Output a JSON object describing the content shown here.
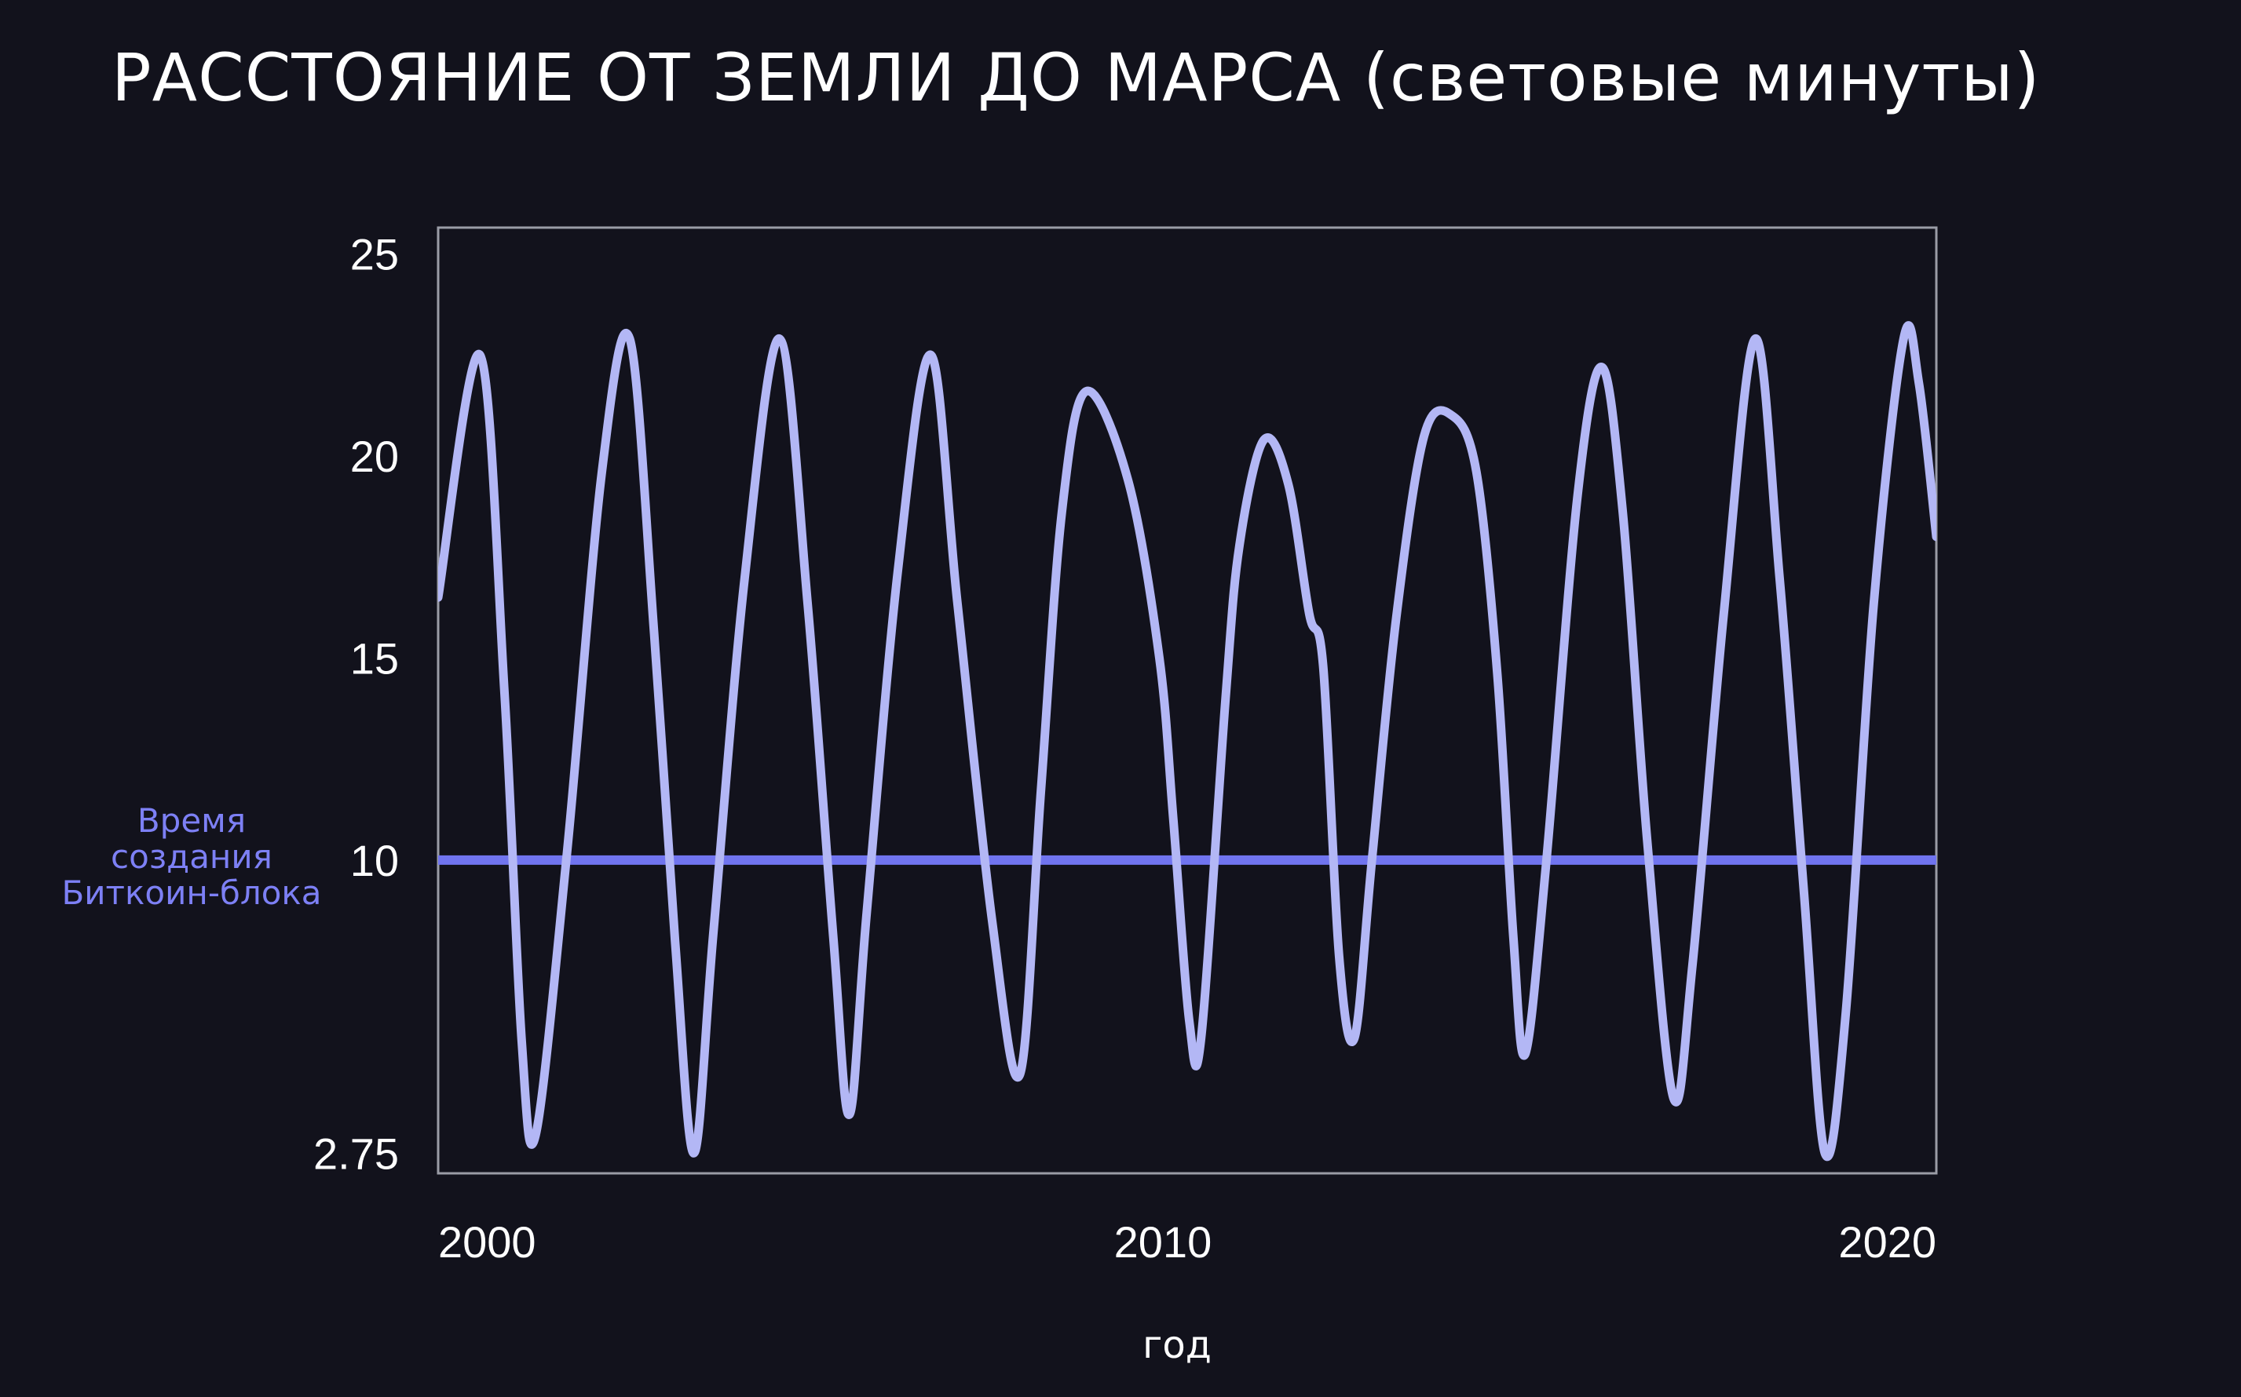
{
  "title": "РАССТОЯНИЕ ОТ ЗЕМЛИ ДО МАРСА (световые минуты)",
  "colors": {
    "background": "#12121c",
    "plot_border": "#9a9ca6",
    "series_line": "#b3b7f5",
    "reference_line": "#7074ef",
    "reference_label": "#7d80f5",
    "text": "#ffffff"
  },
  "chart_data": {
    "type": "line",
    "title": "РАССТОЯНИЕ ОТ ЗЕМЛИ ДО МАРСА (световые минуты)",
    "xlabel": "год",
    "ylabel": "",
    "xlim": [
      1999.6,
      2021.1
    ],
    "ylim": [
      2.25,
      25.65
    ],
    "x_ticks": [
      {
        "value": 2000,
        "label": "2000"
      },
      {
        "value": 2010,
        "label": "2010"
      },
      {
        "value": 2020,
        "label": "2020"
      }
    ],
    "y_ticks": [
      {
        "value": 25,
        "label": "25"
      },
      {
        "value": 20,
        "label": "20"
      },
      {
        "value": 15,
        "label": "15"
      },
      {
        "value": 10,
        "label": "10"
      },
      {
        "value": 2.75,
        "label": "2.75"
      }
    ],
    "grid": false,
    "reference_line": {
      "y": 10,
      "label_lines": [
        "Время",
        "создания",
        "Биткоин-блока"
      ]
    },
    "series": [
      {
        "points": [
          [
            1999.6,
            16.5
          ],
          [
            2000.2,
            22.5
          ],
          [
            2000.55,
            14.2
          ],
          [
            2000.8,
            5.5
          ],
          [
            2001.0,
            3.2
          ],
          [
            2001.45,
            10.2
          ],
          [
            2001.95,
            19.6
          ],
          [
            2002.35,
            22.9
          ],
          [
            2002.7,
            15.6
          ],
          [
            2003.0,
            8.0
          ],
          [
            2003.27,
            2.75
          ],
          [
            2003.55,
            8.2
          ],
          [
            2004.0,
            17.0
          ],
          [
            2004.5,
            22.9
          ],
          [
            2004.9,
            16.4
          ],
          [
            2005.27,
            8.1
          ],
          [
            2005.5,
            3.7
          ],
          [
            2005.75,
            8.7
          ],
          [
            2006.2,
            17.2
          ],
          [
            2006.67,
            22.5
          ],
          [
            2007.05,
            16.4
          ],
          [
            2007.55,
            8.5
          ],
          [
            2007.95,
            4.7
          ],
          [
            2008.25,
            11.7
          ],
          [
            2008.55,
            18.6
          ],
          [
            2008.9,
            21.6
          ],
          [
            2009.5,
            19.4
          ],
          [
            2009.95,
            15.0
          ],
          [
            2010.15,
            11.0
          ],
          [
            2010.38,
            6.0
          ],
          [
            2010.55,
            5.6
          ],
          [
            2010.9,
            14.0
          ],
          [
            2011.1,
            17.8
          ],
          [
            2011.45,
            20.4
          ],
          [
            2011.8,
            19.3
          ],
          [
            2012.1,
            16.1
          ],
          [
            2012.3,
            14.8
          ],
          [
            2012.53,
            7.6
          ],
          [
            2012.75,
            5.6
          ],
          [
            2013.0,
            10.0
          ],
          [
            2013.35,
            16.0
          ],
          [
            2013.75,
            20.5
          ],
          [
            2014.15,
            21.0
          ],
          [
            2014.5,
            19.6
          ],
          [
            2014.8,
            14.6
          ],
          [
            2015.03,
            8.1
          ],
          [
            2015.2,
            5.2
          ],
          [
            2015.5,
            9.9
          ],
          [
            2015.95,
            19.0
          ],
          [
            2016.3,
            22.2
          ],
          [
            2016.6,
            18.6
          ],
          [
            2016.95,
            10.5
          ],
          [
            2017.33,
            4.1
          ],
          [
            2017.6,
            7.4
          ],
          [
            2018.05,
            16.1
          ],
          [
            2018.5,
            22.9
          ],
          [
            2018.85,
            17.0
          ],
          [
            2019.2,
            9.2
          ],
          [
            2019.5,
            2.75
          ],
          [
            2019.8,
            6.2
          ],
          [
            2020.2,
            16.3
          ],
          [
            2020.63,
            22.9
          ],
          [
            2020.85,
            21.8
          ],
          [
            2021.1,
            18.0
          ]
        ]
      }
    ]
  },
  "axes": {
    "xlabel": "год"
  }
}
